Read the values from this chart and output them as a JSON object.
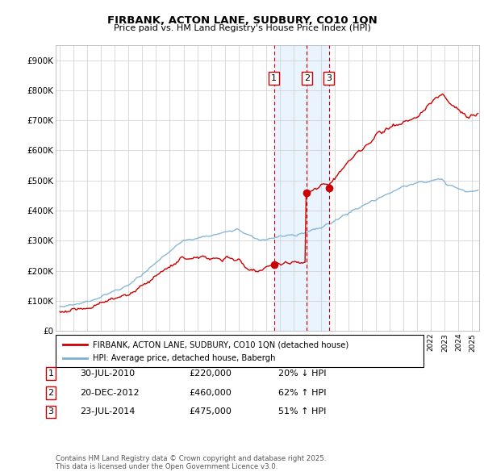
{
  "title": "FIRBANK, ACTON LANE, SUDBURY, CO10 1QN",
  "subtitle": "Price paid vs. HM Land Registry's House Price Index (HPI)",
  "legend_label_red": "FIRBANK, ACTON LANE, SUDBURY, CO10 1QN (detached house)",
  "legend_label_blue": "HPI: Average price, detached house, Babergh",
  "footer": "Contains HM Land Registry data © Crown copyright and database right 2025.\nThis data is licensed under the Open Government Licence v3.0.",
  "transactions": [
    {
      "num": 1,
      "date": "30-JUL-2010",
      "price": 220000,
      "pct": "20%",
      "dir": "↓",
      "year": 2010.57
    },
    {
      "num": 2,
      "date": "20-DEC-2012",
      "price": 460000,
      "pct": "62%",
      "dir": "↑",
      "year": 2012.97
    },
    {
      "num": 3,
      "date": "23-JUL-2014",
      "price": 475000,
      "pct": "51%",
      "dir": "↑",
      "year": 2014.56
    }
  ],
  "ylim": [
    0,
    950000
  ],
  "yticks": [
    0,
    100000,
    200000,
    300000,
    400000,
    500000,
    600000,
    700000,
    800000,
    900000
  ],
  "ytick_labels": [
    "£0",
    "£100K",
    "£200K",
    "£300K",
    "£400K",
    "£500K",
    "£600K",
    "£700K",
    "£800K",
    "£900K"
  ],
  "red_color": "#cc0000",
  "blue_color": "#7bafd4",
  "marker_color": "#cc0000",
  "dashed_color": "#cc0000",
  "shade_color": "#ddeeff",
  "background_color": "#ffffff",
  "grid_color": "#cccccc",
  "xlim_left": 1994.7,
  "xlim_right": 2025.5
}
